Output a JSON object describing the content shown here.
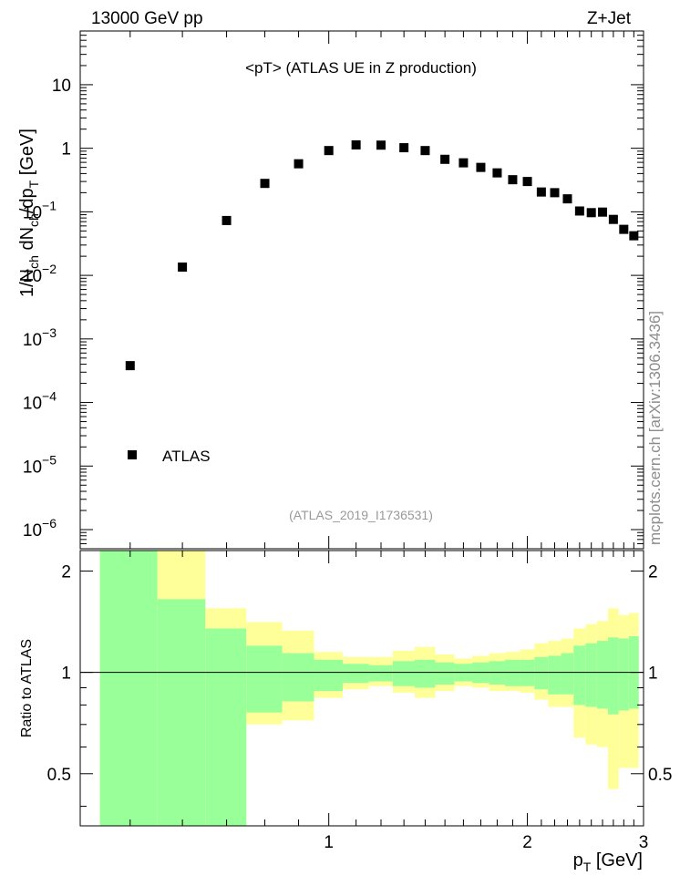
{
  "header": {
    "energy": "13000 GeV pp",
    "process": "Z+Jet"
  },
  "chart_data": {
    "type": "scatter",
    "title": "<pT> (ATLAS UE in Z production)",
    "reference": "(ATLAS_2019_I1736531)",
    "side_label": "mcplots.cern.ch [arXiv:1306.3436]",
    "xlabel": {
      "main": "p",
      "sub": "T",
      "unit": " [GeV]"
    },
    "ylabel": "1/N_ch dN_ch/dp_T [GeV]",
    "ratio_ylabel": "Ratio to ATLAS",
    "x_scale": "log",
    "xlim": [
      0.42,
      3.0
    ],
    "y_scale": "log",
    "ylim": [
      5e-07,
      70
    ],
    "x_ticks": [
      {
        "v": 1,
        "label": "1"
      },
      {
        "v": 2,
        "label": "2"
      },
      {
        "v": 3,
        "label": "3"
      }
    ],
    "y_ticks": [
      {
        "v": 1e-06,
        "base": "10",
        "exp": "−6"
      },
      {
        "v": 1e-05,
        "base": "10",
        "exp": "−5"
      },
      {
        "v": 0.0001,
        "base": "10",
        "exp": "−4"
      },
      {
        "v": 0.001,
        "base": "10",
        "exp": "−3"
      },
      {
        "v": 0.01,
        "base": "10",
        "exp": "−2"
      },
      {
        "v": 0.1,
        "base": "10",
        "exp": "−1"
      },
      {
        "v": 1,
        "base": "1",
        "exp": ""
      },
      {
        "v": 10,
        "base": "10",
        "exp": ""
      }
    ],
    "ratio_ylim": [
      0.35,
      2.3
    ],
    "ratio_ticks": [
      {
        "v": 0.5,
        "label": "0.5"
      },
      {
        "v": 1,
        "label": "1"
      },
      {
        "v": 2,
        "label": "2"
      }
    ],
    "legend": {
      "entry": "ATLAS",
      "position": "bottom-left"
    },
    "series": [
      {
        "name": "ATLAS",
        "x": [
          0.5,
          0.6,
          0.7,
          0.8,
          0.9,
          1.0,
          1.1,
          1.2,
          1.3,
          1.4,
          1.5,
          1.6,
          1.7,
          1.8,
          1.9,
          2.0,
          2.1,
          2.2,
          2.3,
          2.4,
          2.5,
          2.6,
          2.7,
          2.8,
          2.9
        ],
        "y": [
          0.00038,
          0.0135,
          0.073,
          0.28,
          0.57,
          0.92,
          1.13,
          1.12,
          1.02,
          0.92,
          0.67,
          0.59,
          0.5,
          0.41,
          0.32,
          0.3,
          0.205,
          0.2,
          0.16,
          0.103,
          0.097,
          0.099,
          0.076,
          0.053,
          0.042
        ]
      }
    ],
    "ratio_bands": {
      "edges": [
        0.45,
        0.55,
        0.65,
        0.75,
        0.85,
        0.95,
        1.05,
        1.15,
        1.25,
        1.35,
        1.45,
        1.55,
        1.65,
        1.75,
        1.85,
        1.95,
        2.05,
        2.15,
        2.25,
        2.35,
        2.45,
        2.55,
        2.65,
        2.75,
        2.85,
        2.95
      ],
      "inner_lo": [
        0.35,
        0.35,
        0.35,
        0.76,
        0.82,
        0.88,
        0.93,
        0.94,
        0.91,
        0.9,
        0.92,
        0.94,
        0.93,
        0.92,
        0.91,
        0.91,
        0.89,
        0.86,
        0.86,
        0.8,
        0.79,
        0.78,
        0.75,
        0.77,
        0.78
      ],
      "inner_hi": [
        2.3,
        1.65,
        1.35,
        1.2,
        1.14,
        1.09,
        1.06,
        1.05,
        1.08,
        1.09,
        1.07,
        1.06,
        1.07,
        1.08,
        1.09,
        1.09,
        1.11,
        1.12,
        1.14,
        1.2,
        1.22,
        1.24,
        1.27,
        1.26,
        1.28
      ],
      "outer_lo": [
        0.35,
        0.35,
        0.35,
        0.7,
        0.72,
        0.84,
        0.89,
        0.91,
        0.87,
        0.84,
        0.88,
        0.91,
        0.9,
        0.88,
        0.88,
        0.87,
        0.83,
        0.79,
        0.79,
        0.64,
        0.61,
        0.6,
        0.45,
        0.52,
        0.52
      ],
      "outer_hi": [
        2.3,
        2.3,
        1.55,
        1.41,
        1.33,
        1.15,
        1.11,
        1.11,
        1.16,
        1.19,
        1.13,
        1.1,
        1.12,
        1.14,
        1.15,
        1.17,
        1.22,
        1.24,
        1.26,
        1.35,
        1.39,
        1.42,
        1.55,
        1.48,
        1.5
      ]
    },
    "colors": {
      "marker": "#000000",
      "inner_band": "#99ff99",
      "outer_band": "#ffff99",
      "reference_line": "#000000",
      "side_label": "#8c8c8c",
      "reference_text": "#999999"
    }
  }
}
